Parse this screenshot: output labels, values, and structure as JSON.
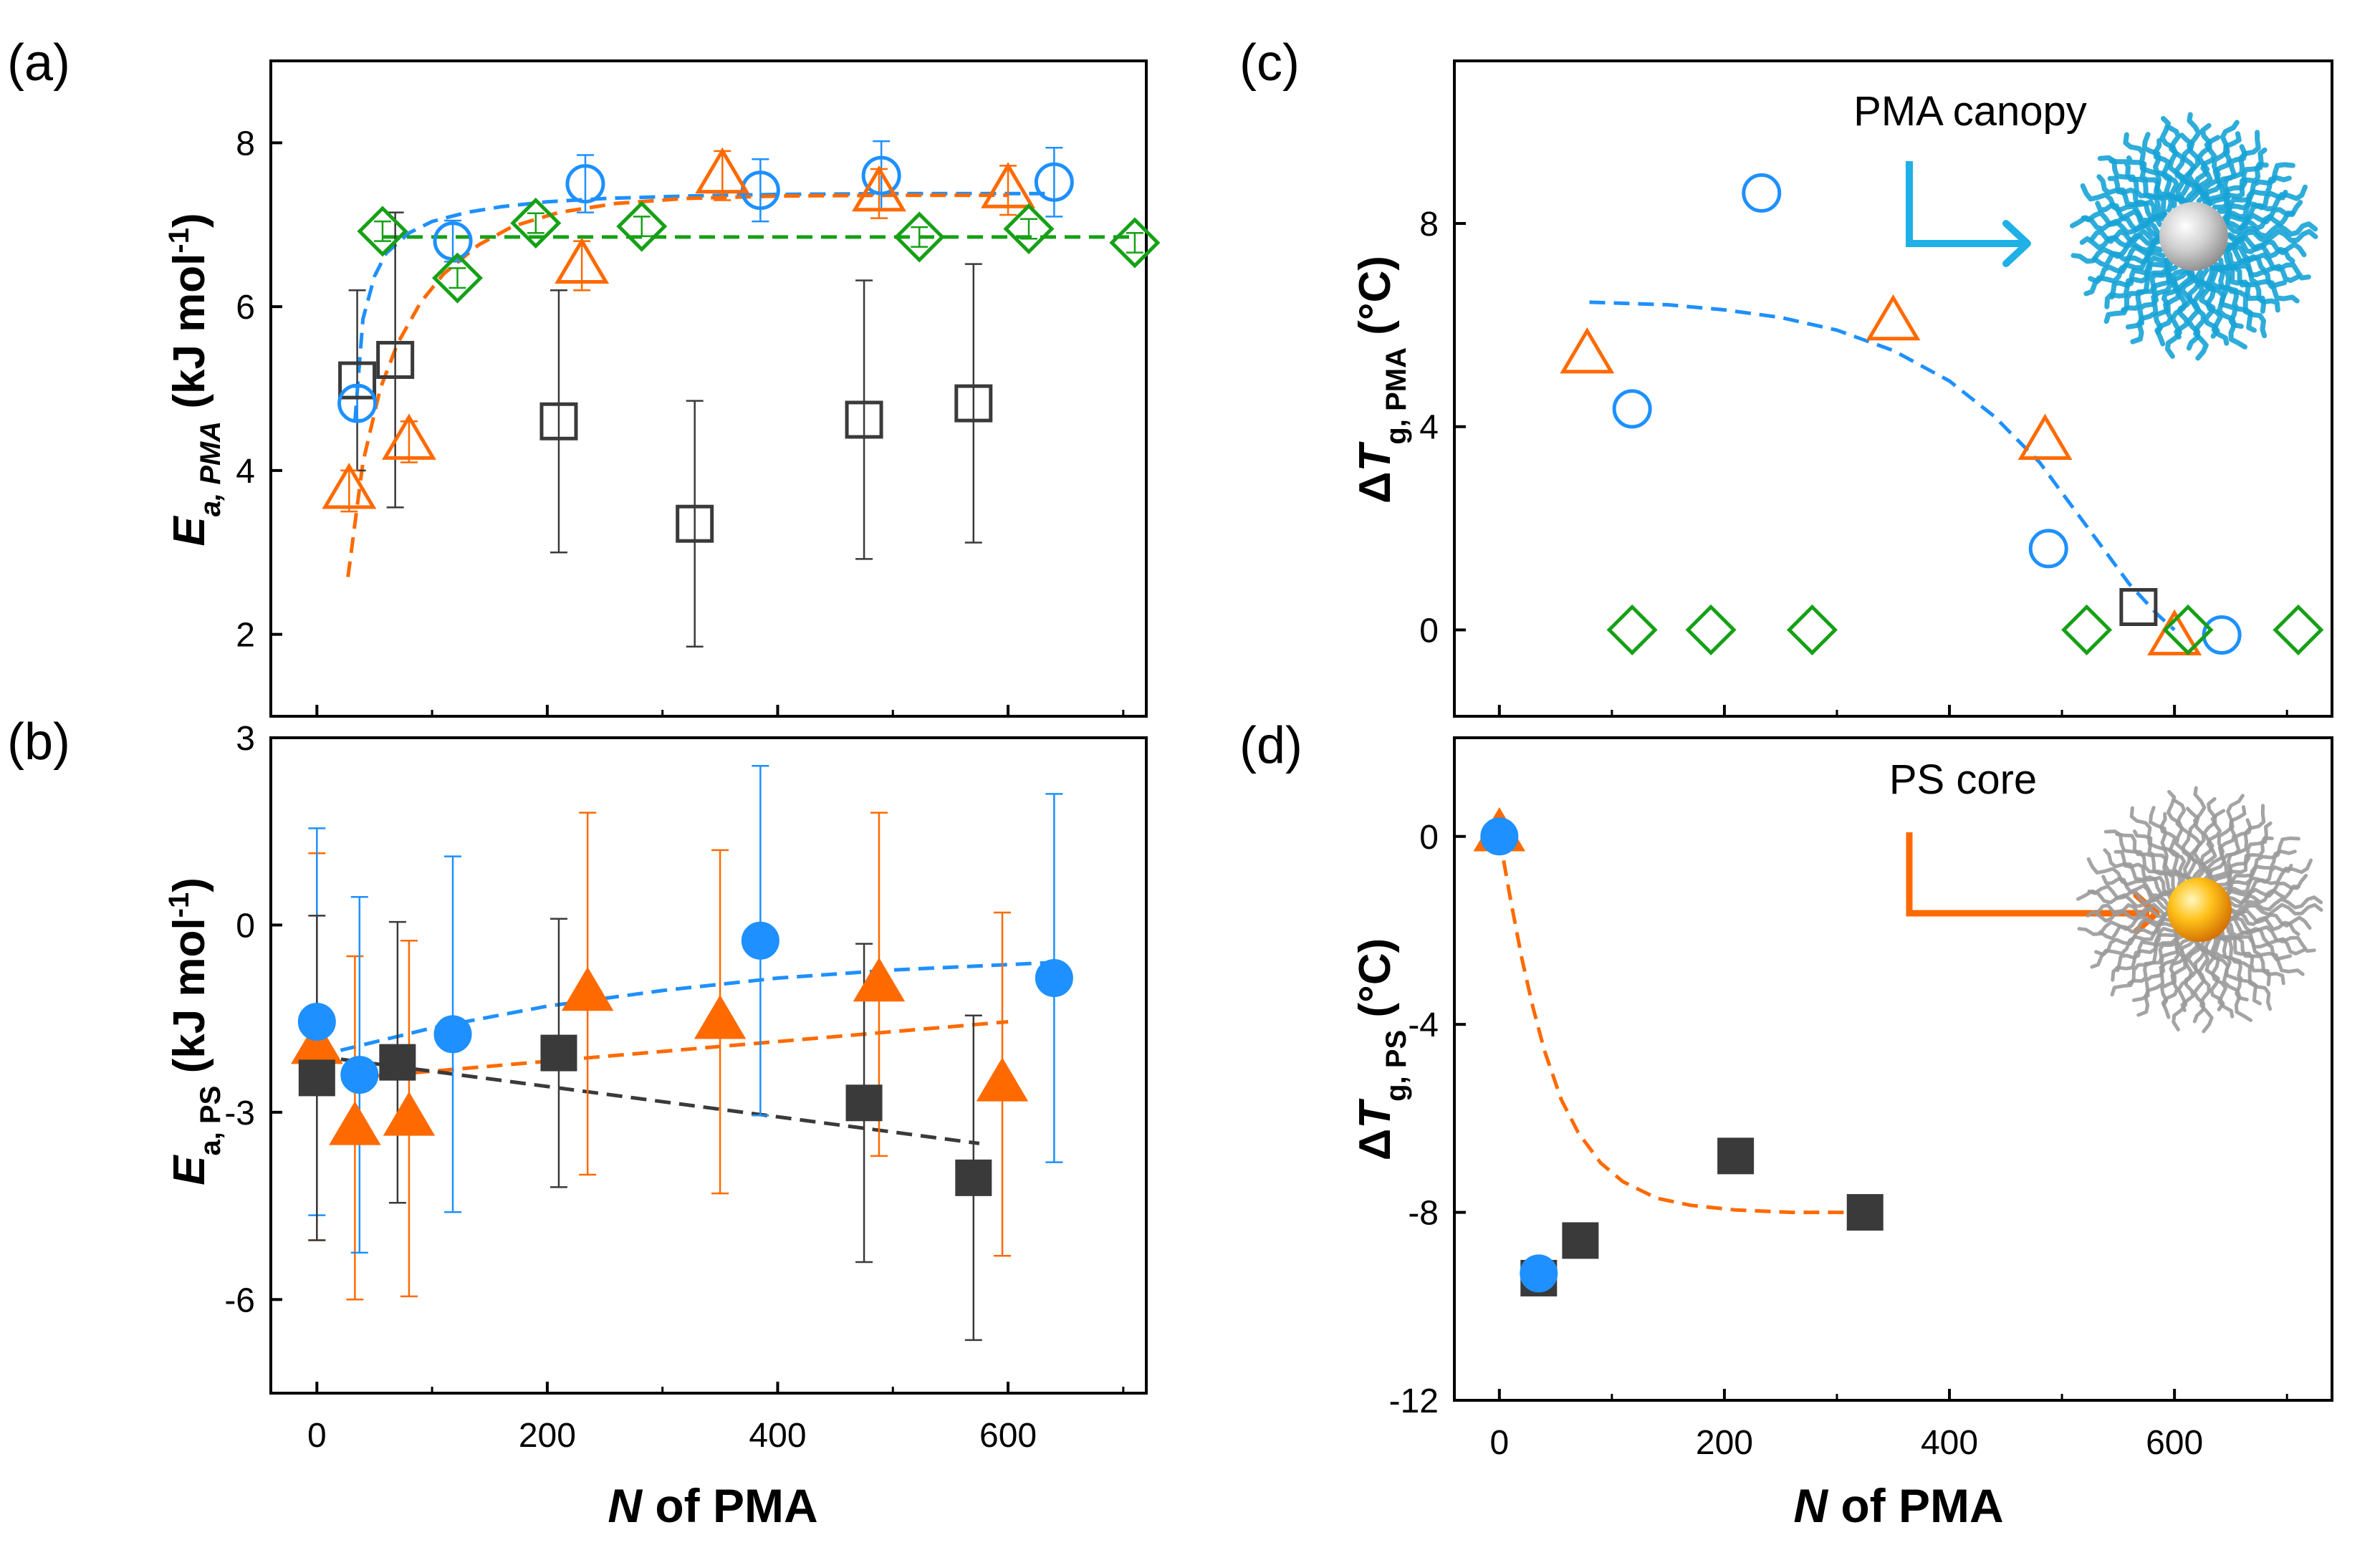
{
  "figure": {
    "xlabel_italic": "N",
    "xlabel_rest": " of PMA",
    "colors": {
      "black": "#3a3a3a",
      "blue": "#1e90ff",
      "orange": "#ff6a00",
      "green": "#16a016",
      "axis": "#000000"
    }
  },
  "chart_data": [
    {
      "id": "a",
      "panel_label": "(a)",
      "type": "scatter",
      "title": "",
      "xlabel": "",
      "ylabel": "Ea, PMA (kJ mol-1)",
      "ylabel_parts": {
        "main": "E",
        "sub": "a, PMA",
        "rest": " (kJ mol",
        "sup": "-1",
        "end": ")"
      },
      "xlim": [
        -40,
        720
      ],
      "ylim": [
        1.0,
        9.0
      ],
      "xticks": [
        0,
        200,
        400,
        600
      ],
      "show_xtick_labels": false,
      "yticks": [
        2,
        4,
        6,
        8
      ],
      "ytick_labels": [
        "2",
        "4",
        "6",
        "8"
      ],
      "series": [
        {
          "name": "black squares",
          "marker": "square",
          "filled": false,
          "color": "black",
          "x": [
            35,
            68,
            210,
            328,
            475,
            570
          ],
          "y": [
            5.1,
            5.35,
            4.6,
            3.35,
            4.62,
            4.82
          ],
          "yerr": [
            1.1,
            1.8,
            1.6,
            1.5,
            1.7,
            1.7
          ]
        },
        {
          "name": "blue circles",
          "marker": "circle",
          "filled": false,
          "color": "blue",
          "x": [
            35,
            118,
            233,
            385,
            490,
            640
          ],
          "y": [
            4.82,
            6.8,
            7.5,
            7.42,
            7.6,
            7.52
          ],
          "yerr": [
            0.2,
            0.25,
            0.35,
            0.38,
            0.42,
            0.42
          ]
        },
        {
          "name": "orange triangles",
          "marker": "triangle",
          "filled": false,
          "color": "orange",
          "x": [
            28,
            80,
            230,
            352,
            488,
            600
          ],
          "y": [
            3.75,
            4.35,
            6.5,
            7.6,
            7.38,
            7.42
          ],
          "yerr": [
            0.25,
            0.25,
            0.3,
            0.3,
            0.3,
            0.3
          ]
        },
        {
          "name": "green diamonds",
          "marker": "diamond",
          "filled": false,
          "color": "green",
          "x": [
            57,
            122,
            190,
            282,
            523,
            618,
            710
          ],
          "y": [
            6.92,
            6.35,
            7.02,
            6.98,
            6.85,
            6.95,
            6.78
          ],
          "yerr": [
            0.12,
            0.12,
            0.12,
            0.12,
            0.12,
            0.12,
            0.12
          ]
        }
      ],
      "fits": [
        {
          "color": "blue",
          "x": [
            33,
            40,
            50,
            60,
            80,
            100,
            130,
            160,
            200,
            250,
            320,
            400,
            500,
            600,
            640
          ],
          "y": [
            4.6,
            5.85,
            6.37,
            6.65,
            6.9,
            7.04,
            7.15,
            7.22,
            7.28,
            7.32,
            7.35,
            7.37,
            7.38,
            7.38,
            7.38
          ]
        },
        {
          "color": "orange",
          "x": [
            27,
            40,
            55,
            70,
            90,
            110,
            140,
            170,
            210,
            260,
            320,
            400,
            500,
            600
          ],
          "y": [
            2.7,
            4.1,
            5.0,
            5.55,
            6.05,
            6.4,
            6.75,
            6.98,
            7.15,
            7.26,
            7.32,
            7.35,
            7.36,
            7.36
          ]
        },
        {
          "color": "green",
          "x": [
            57,
            710
          ],
          "y": [
            6.85,
            6.85
          ]
        }
      ]
    },
    {
      "id": "b",
      "panel_label": "(b)",
      "type": "scatter",
      "title": "",
      "xlabel": "N of PMA",
      "ylabel": "Ea, PS (kJ mol-1)",
      "ylabel_parts": {
        "main": "E",
        "sub": "a, PS",
        "rest": " (kJ mol",
        "sup": "-1",
        "end": ")"
      },
      "xlim": [
        -40,
        720
      ],
      "ylim": [
        -7.5,
        3.0
      ],
      "xticks": [
        0,
        200,
        400,
        600
      ],
      "xtick_labels": [
        "0",
        "200",
        "400",
        "600"
      ],
      "show_xtick_labels": true,
      "yticks": [
        -6,
        -3,
        0,
        3
      ],
      "ytick_labels": [
        "-6",
        "-3",
        "0",
        "3"
      ],
      "series": [
        {
          "name": "orange filled triangles",
          "marker": "triangle",
          "filled": true,
          "color": "orange",
          "x": [
            0,
            33,
            80,
            235,
            350,
            488,
            595
          ],
          "y": [
            -1.95,
            -3.25,
            -3.1,
            -1.1,
            -1.55,
            -0.95,
            -2.55
          ],
          "yerr": [
            3.1,
            2.75,
            2.85,
            2.9,
            2.75,
            2.75,
            2.75
          ]
        },
        {
          "name": "blue filled circles",
          "marker": "circle",
          "filled": true,
          "color": "blue",
          "x": [
            0,
            37,
            118,
            385,
            640
          ],
          "y": [
            -1.55,
            -2.4,
            -1.75,
            -0.25,
            -0.85
          ],
          "yerr": [
            3.1,
            2.85,
            2.85,
            2.8,
            2.95
          ]
        },
        {
          "name": "black filled squares",
          "marker": "square",
          "filled": true,
          "color": "black",
          "x": [
            0,
            70,
            210,
            475,
            570
          ],
          "y": [
            -2.45,
            -2.2,
            -2.05,
            -2.85,
            -4.05
          ],
          "yerr": [
            2.6,
            2.25,
            2.15,
            2.55,
            2.6
          ]
        }
      ],
      "fits": [
        {
          "color": "blue",
          "x": [
            0,
            100,
            200,
            300,
            400,
            500,
            640
          ],
          "y": [
            -2.1,
            -1.65,
            -1.3,
            -1.05,
            -0.85,
            -0.72,
            -0.6
          ]
        },
        {
          "color": "orange",
          "x": [
            0,
            600
          ],
          "y": [
            -2.5,
            -1.55
          ]
        },
        {
          "color": "black",
          "x": [
            0,
            575
          ],
          "y": [
            -2.1,
            -3.5
          ]
        }
      ]
    },
    {
      "id": "c",
      "panel_label": "(c)",
      "type": "scatter",
      "title": "",
      "xlabel": "",
      "ylabel": "ΔTg, PMA (°C)",
      "ylabel_parts": {
        "pre": "Δ",
        "main": "T",
        "sub": "g,  PMA",
        "rest": " (°C)"
      },
      "xlim": [
        -40,
        740
      ],
      "ylim": [
        -1.7,
        11.2
      ],
      "xticks": [
        0,
        200,
        400,
        600
      ],
      "show_xtick_labels": false,
      "yticks": [
        0,
        4,
        8
      ],
      "ytick_labels": [
        "0",
        "4",
        "8"
      ],
      "annotation": "PMA canopy",
      "series": [
        {
          "name": "blue circles",
          "marker": "circle",
          "filled": false,
          "color": "blue",
          "x": [
            118,
            233,
            488,
            642
          ],
          "y": [
            4.35,
            8.6,
            1.6,
            -0.1
          ]
        },
        {
          "name": "orange triangles",
          "marker": "triangle",
          "filled": false,
          "color": "orange",
          "x": [
            78,
            350,
            485,
            600
          ],
          "y": [
            5.4,
            6.05,
            3.7,
            -0.15
          ]
        },
        {
          "name": "green diamonds",
          "marker": "diamond",
          "filled": false,
          "color": "green",
          "x": [
            118,
            188,
            278,
            522,
            612,
            710
          ],
          "y": [
            0,
            0,
            0,
            0,
            0,
            0
          ]
        },
        {
          "name": "black squares",
          "marker": "square",
          "filled": false,
          "color": "black",
          "x": [
            568
          ],
          "y": [
            0.45
          ]
        }
      ],
      "fits": [
        {
          "color": "blue",
          "x": [
            80,
            150,
            200,
            250,
            300,
            350,
            400,
            440,
            480,
            510,
            540,
            560,
            585,
            600
          ],
          "y": [
            6.45,
            6.4,
            6.3,
            6.15,
            5.9,
            5.5,
            4.9,
            4.2,
            3.3,
            2.4,
            1.5,
            0.9,
            0.3,
            0.0
          ]
        }
      ]
    },
    {
      "id": "d",
      "panel_label": "(d)",
      "type": "scatter",
      "title": "",
      "xlabel": "N of PMA",
      "ylabel": "ΔTg, PS (°C)",
      "ylabel_parts": {
        "pre": "Δ",
        "main": "T",
        "sub": "g, PS",
        "rest": " (°C)"
      },
      "xlim": [
        -40,
        740
      ],
      "ylim": [
        -12.0,
        2.1
      ],
      "xticks": [
        0,
        200,
        400,
        600
      ],
      "xtick_labels": [
        "0",
        "200",
        "400",
        "600"
      ],
      "show_xtick_labels": true,
      "yticks": [
        -12,
        -8,
        -4,
        0
      ],
      "ytick_labels": [
        "-12",
        "-8",
        "-4",
        "0"
      ],
      "annotation": "PS core",
      "series": [
        {
          "name": "orange filled triangles",
          "marker": "triangle",
          "filled": true,
          "color": "orange",
          "x": [
            0
          ],
          "y": [
            0.05
          ]
        },
        {
          "name": "black filled squares",
          "marker": "square",
          "filled": true,
          "color": "black",
          "x": [
            35,
            72,
            210,
            325
          ],
          "y": [
            -9.4,
            -8.6,
            -6.8,
            -8.0
          ]
        },
        {
          "name": "blue filled circles",
          "marker": "circle",
          "filled": true,
          "color": "blue",
          "x": [
            0,
            35
          ],
          "y": [
            0,
            -9.3
          ]
        }
      ],
      "fits": [
        {
          "color": "orange",
          "x": [
            0,
            10,
            20,
            30,
            40,
            55,
            70,
            90,
            110,
            140,
            170,
            210,
            260,
            325
          ],
          "y": [
            0,
            -1.35,
            -2.6,
            -3.65,
            -4.55,
            -5.6,
            -6.3,
            -6.95,
            -7.35,
            -7.7,
            -7.85,
            -7.95,
            -8.0,
            -8.0
          ]
        }
      ]
    }
  ]
}
